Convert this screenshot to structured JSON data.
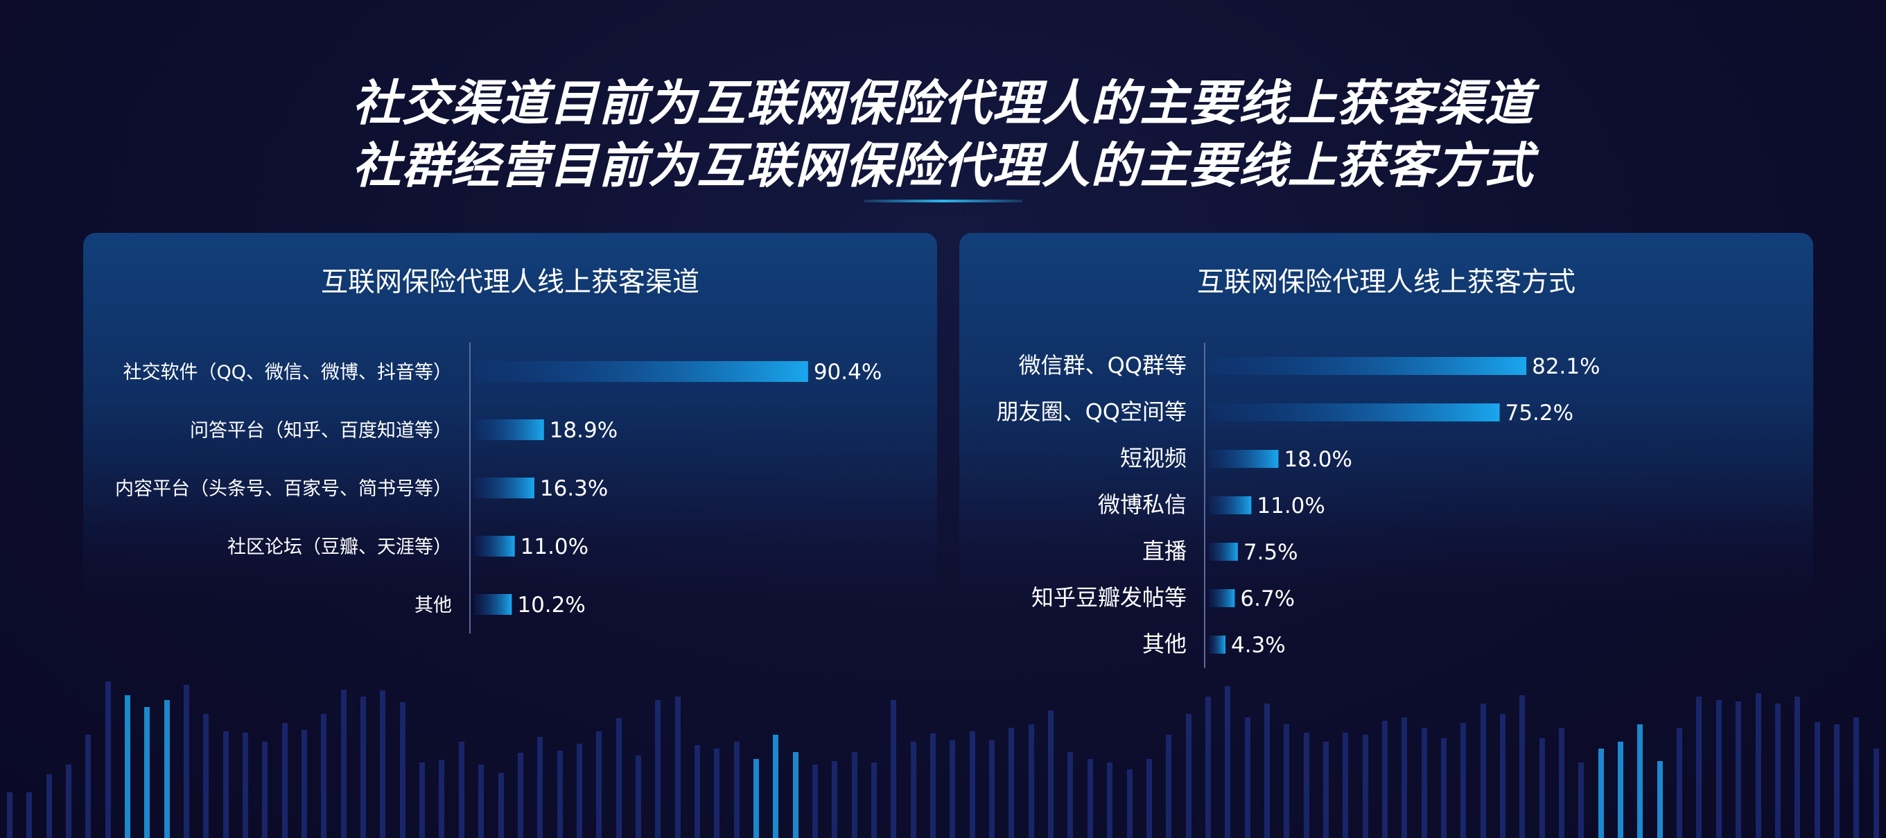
{
  "headline": {
    "line1": "社交渠道目前为互联网保险代理人的主要线上获客渠道",
    "line2": "社群经营目前为互联网保险代理人的主要线上获客方式"
  },
  "colors": {
    "background": "#0d0e2e",
    "panel": "#123f7a",
    "bar_start": "#0d3c8c",
    "bar_end": "#1aa7ee",
    "text": "#ffffff"
  },
  "chart_data": [
    {
      "type": "bar",
      "orientation": "horizontal",
      "title": "互联网保险代理人线上获客渠道",
      "categories": [
        "社交软件（QQ、微信、微博、抖音等）",
        "问答平台（知乎、百度知道等）",
        "内容平台（头条号、百家号、简书号等）",
        "社区论坛（豆瓣、天涯等）",
        "其他"
      ],
      "values": [
        90.4,
        18.9,
        16.3,
        11.0,
        10.2
      ],
      "value_labels": [
        "90.4%",
        "18.9%",
        "16.3%",
        "11.0%",
        "10.2%"
      ],
      "xlim": [
        0,
        100
      ],
      "unit": "%"
    },
    {
      "type": "bar",
      "orientation": "horizontal",
      "title": "互联网保险代理人线上获客方式",
      "categories": [
        "微信群、QQ群等",
        "朋友圈、QQ空间等",
        "短视频",
        "微博私信",
        "直播",
        "知乎豆瓣发帖等",
        "其他"
      ],
      "values": [
        82.1,
        75.2,
        18.0,
        11.0,
        7.5,
        6.7,
        4.3
      ],
      "value_labels": [
        "82.1%",
        "75.2%",
        "18.0%",
        "11.0%",
        "7.5%",
        "6.7%",
        "4.3%"
      ],
      "xlim": [
        0,
        100
      ],
      "unit": "%"
    }
  ]
}
